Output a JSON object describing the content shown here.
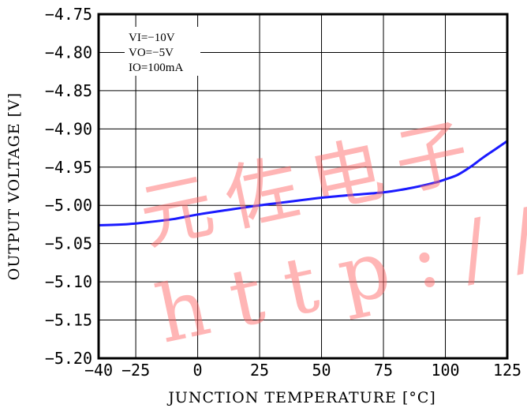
{
  "chart_data": {
    "type": "line",
    "title": "",
    "xlabel": "JUNCTION TEMPERATURE [°C]",
    "ylabel": "OUTPUT VOLTAGE [V]",
    "xlim": [
      -40,
      125
    ],
    "ylim": [
      -5.2,
      -4.75
    ],
    "x_ticks": [
      "−40",
      "−25",
      "0",
      "25",
      "50",
      "75",
      "100",
      "125"
    ],
    "x_tick_values": [
      -40,
      -25,
      0,
      25,
      50,
      75,
      100,
      125
    ],
    "y_ticks": [
      "−4.75",
      "−4.80",
      "−4.85",
      "−4.90",
      "−4.95",
      "−5.00",
      "−5.05",
      "−5.10",
      "−5.15",
      "−5.20"
    ],
    "y_tick_values": [
      -4.75,
      -4.8,
      -4.85,
      -4.9,
      -4.95,
      -5.0,
      -5.05,
      -5.1,
      -5.15,
      -5.2
    ],
    "grid": true,
    "conditions": [
      "VI=−10V",
      "VO=−5V",
      "IO=100mA"
    ],
    "series": [
      {
        "color": "#1a1aff",
        "x": [
          -40,
          -30,
          -20,
          -10,
          0,
          10,
          25,
          40,
          50,
          60,
          75,
          85,
          95,
          100,
          105,
          110,
          115,
          120,
          125
        ],
        "y": [
          -5.026,
          -5.025,
          -5.022,
          -5.018,
          -5.012,
          -5.007,
          -5.0,
          -4.994,
          -4.99,
          -4.987,
          -4.983,
          -4.978,
          -4.971,
          -4.966,
          -4.96,
          -4.95,
          -4.938,
          -4.927,
          -4.916
        ]
      }
    ]
  },
  "watermark": {
    "line1": "元佐电子",
    "line2": "http://w"
  }
}
